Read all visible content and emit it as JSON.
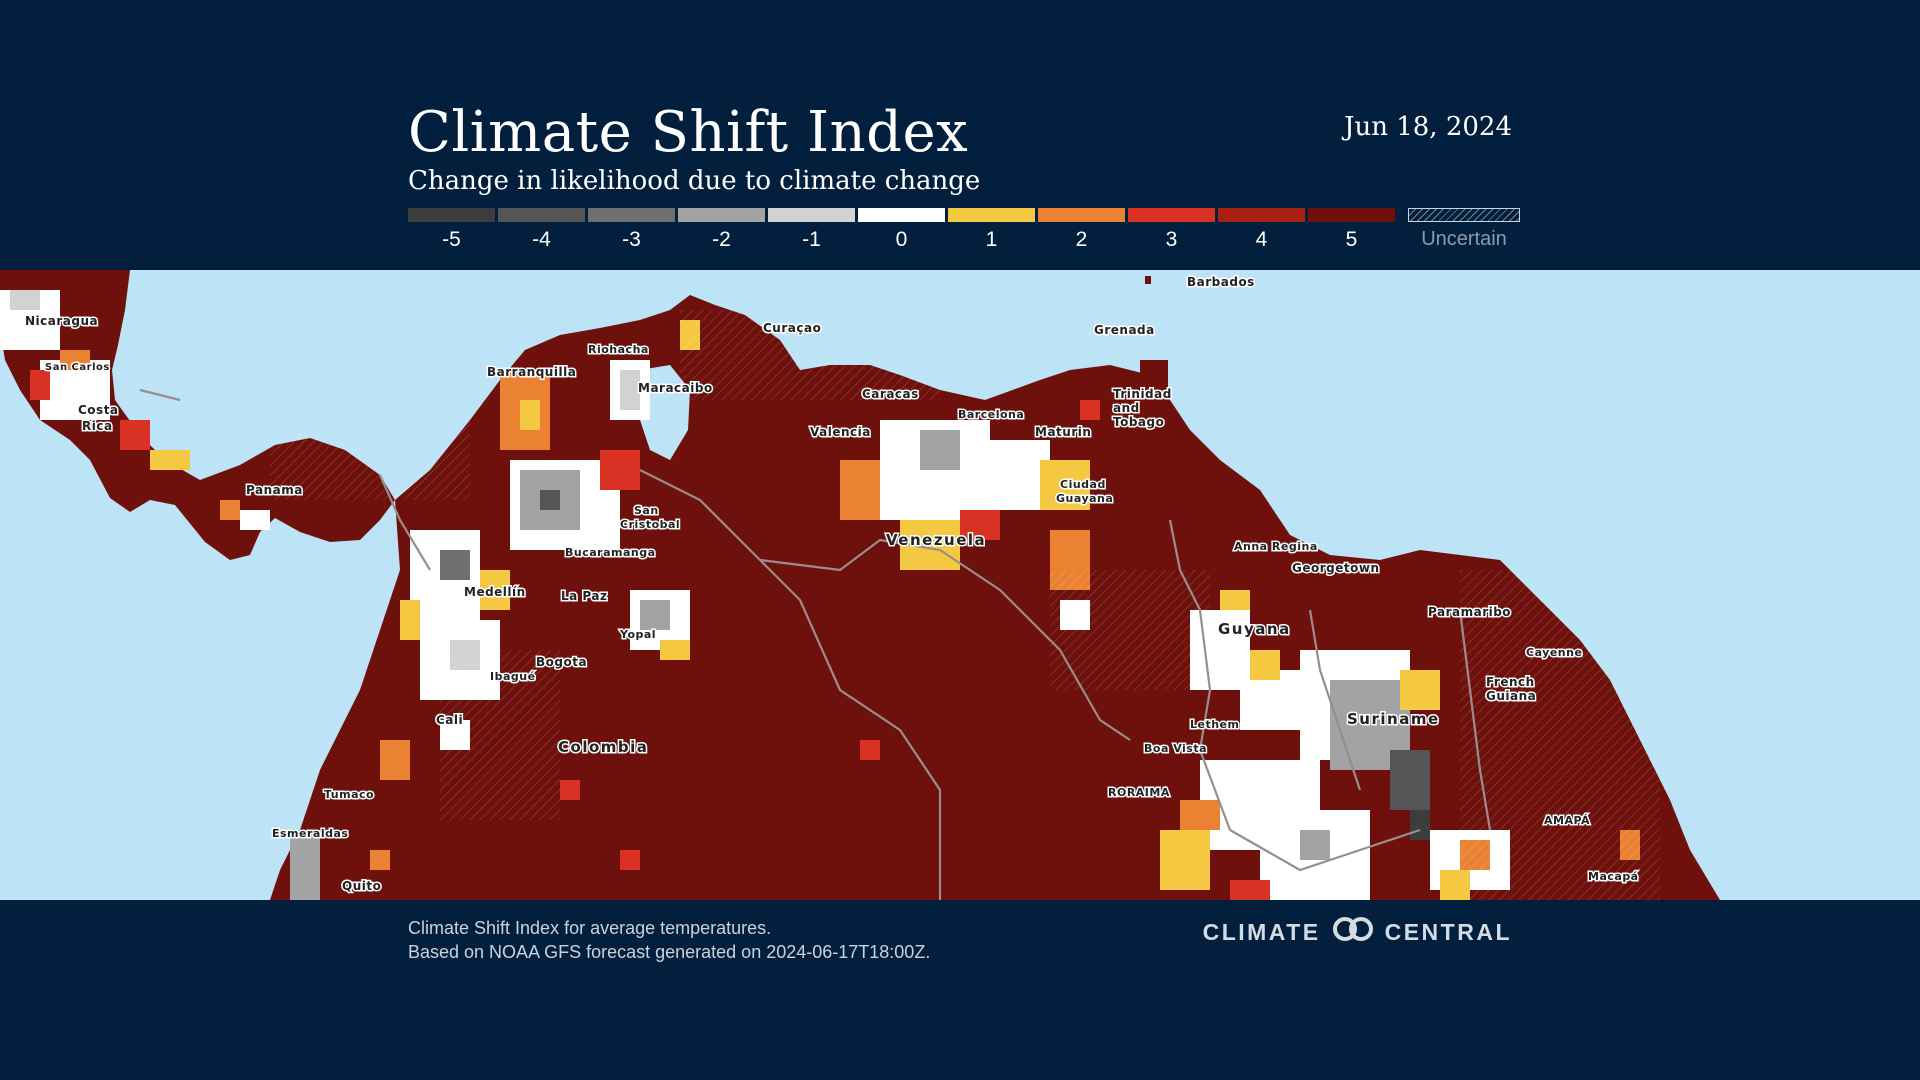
{
  "header": {
    "title": "Climate Shift Index",
    "subtitle": "Change in likelihood due to climate change",
    "date": "Jun 18, 2024"
  },
  "legend": {
    "items": [
      {
        "label": "-5",
        "color": "#3d3d3f"
      },
      {
        "label": "-4",
        "color": "#555557"
      },
      {
        "label": "-3",
        "color": "#6f6f72"
      },
      {
        "label": "-2",
        "color": "#a3a3a6"
      },
      {
        "label": "-1",
        "color": "#d2d2d4"
      },
      {
        "label": "0",
        "color": "#ffffff"
      },
      {
        "label": "1",
        "color": "#f5c842"
      },
      {
        "label": "2",
        "color": "#eb8233"
      },
      {
        "label": "3",
        "color": "#d93225"
      },
      {
        "label": "4",
        "color": "#a81f14"
      },
      {
        "label": "5",
        "color": "#6e110c"
      },
      {
        "label": "Uncertain",
        "color": "hatched"
      }
    ]
  },
  "map": {
    "colors": {
      "ocean": "#bde3f7",
      "land_dominant": "#6e110c",
      "border": "#9a8d8b"
    },
    "labels": {
      "nicaragua": "Nicaragua",
      "san_carlos": "San Carlos",
      "costa_rica_1": "Costa",
      "costa_rica_2": "Rica",
      "panama": "Panama",
      "barranquilla": "Barranquilla",
      "riohacha": "Riohacha",
      "maracaibo": "Maracaibo",
      "curacao": "Curaçao",
      "caracas": "Caracas",
      "valencia": "Valencia",
      "barcelona": "Barcelona",
      "maturin": "Maturin",
      "grenada": "Grenada",
      "barbados": "Barbados",
      "trinidad_1": "Trinidad",
      "trinidad_2": "and",
      "trinidad_3": "Tobago",
      "ciudad_guayana_1": "Ciudad",
      "ciudad_guayana_2": "Guayana",
      "venezuela": "Venezuela",
      "san_cristobal_1": "San",
      "san_cristobal_2": "Cristobal",
      "bucaramanga": "Bucaramanga",
      "medellin": "Medellín",
      "la_paz": "La Paz",
      "yopal": "Yopal",
      "bogota": "Bogota",
      "ibague": "Ibagué",
      "cali": "Cali",
      "colombia": "Colombia",
      "tumaco": "Tumaco",
      "esmeraldas": "Esmeraldas",
      "quito": "Quito",
      "anna_regina": "Anna Regina",
      "georgetown": "Georgetown",
      "guyana": "Guyana",
      "paramaribo": "Paramaribo",
      "cayenne": "Cayenne",
      "french_guiana_1": "French",
      "french_guiana_2": "Guiana",
      "suriname": "Suriname",
      "lethem": "Lethem",
      "boa_vista": "Boa Vista",
      "roraima": "RORAIMA",
      "amapa": "AMAPÁ",
      "macapa": "Macapá"
    }
  },
  "footer": {
    "note_line1": "Climate Shift Index for average temperatures.",
    "note_line2": "Based on NOAA GFS forecast generated on 2024-06-17T18:00Z.",
    "brand_left": "CLIMATE",
    "brand_right": "CENTRAL"
  }
}
